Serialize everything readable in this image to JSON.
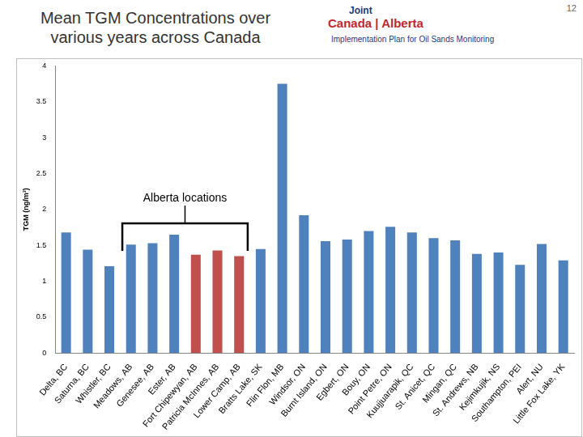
{
  "header": {
    "title": "Mean TGM Concentrations over various years across Canada",
    "logo": [
      "Joint",
      "Canada | Alberta",
      "Implementation Plan for Oil Sands Monitoring"
    ],
    "page_number": 12
  },
  "chart_data": {
    "type": "bar",
    "y_label": "TGM (ng/m³)",
    "categories": [
      "Delta, BC",
      "Saturna, BC",
      "Whistler, BC",
      "Meadows, AB",
      "Genesee, AB",
      "Ester, AB",
      "Fort Chipewyan, AB",
      "Patricia McInnes, AB",
      "Lower Camp, AB",
      "Bratts Lake, SK",
      "Flin Flon, MB",
      "Windsor, ON",
      "Burnt Island, ON",
      "Egbert, ON",
      "Bouy, ON",
      "Point Petre, ON",
      "Kuujjuarapik, QC",
      "St. Anicet, QC",
      "Mingan, QC",
      "St. Andrews, NB",
      "Kejimkujik, NS",
      "Southampton, PEI",
      "Alert, NU",
      "Little Fox Lake, YK"
    ],
    "values": [
      1.68,
      1.44,
      1.21,
      1.51,
      1.53,
      1.65,
      1.37,
      1.43,
      1.35,
      1.45,
      3.75,
      1.92,
      1.56,
      1.58,
      1.7,
      1.76,
      1.68,
      1.6,
      1.57,
      1.38,
      1.4,
      1.23,
      1.52,
      1.29
    ],
    "colors": [
      "#4f81bd",
      "#4f81bd",
      "#4f81bd",
      "#4f81bd",
      "#4f81bd",
      "#4f81bd",
      "#c0504d",
      "#c0504d",
      "#c0504d",
      "#4f81bd",
      "#4f81bd",
      "#4f81bd",
      "#4f81bd",
      "#4f81bd",
      "#4f81bd",
      "#4f81bd",
      "#4f81bd",
      "#4f81bd",
      "#4f81bd",
      "#4f81bd",
      "#4f81bd",
      "#4f81bd",
      "#4f81bd",
      "#4f81bd"
    ],
    "ylim": [
      0,
      4
    ],
    "yticks": [
      0,
      0.5,
      1,
      1.5,
      2,
      2.5,
      3,
      3.5,
      4
    ],
    "grid": false,
    "annotation": {
      "text": "Alberta locations",
      "categories": [
        "Meadows, AB",
        "Lower Camp, AB"
      ]
    }
  }
}
